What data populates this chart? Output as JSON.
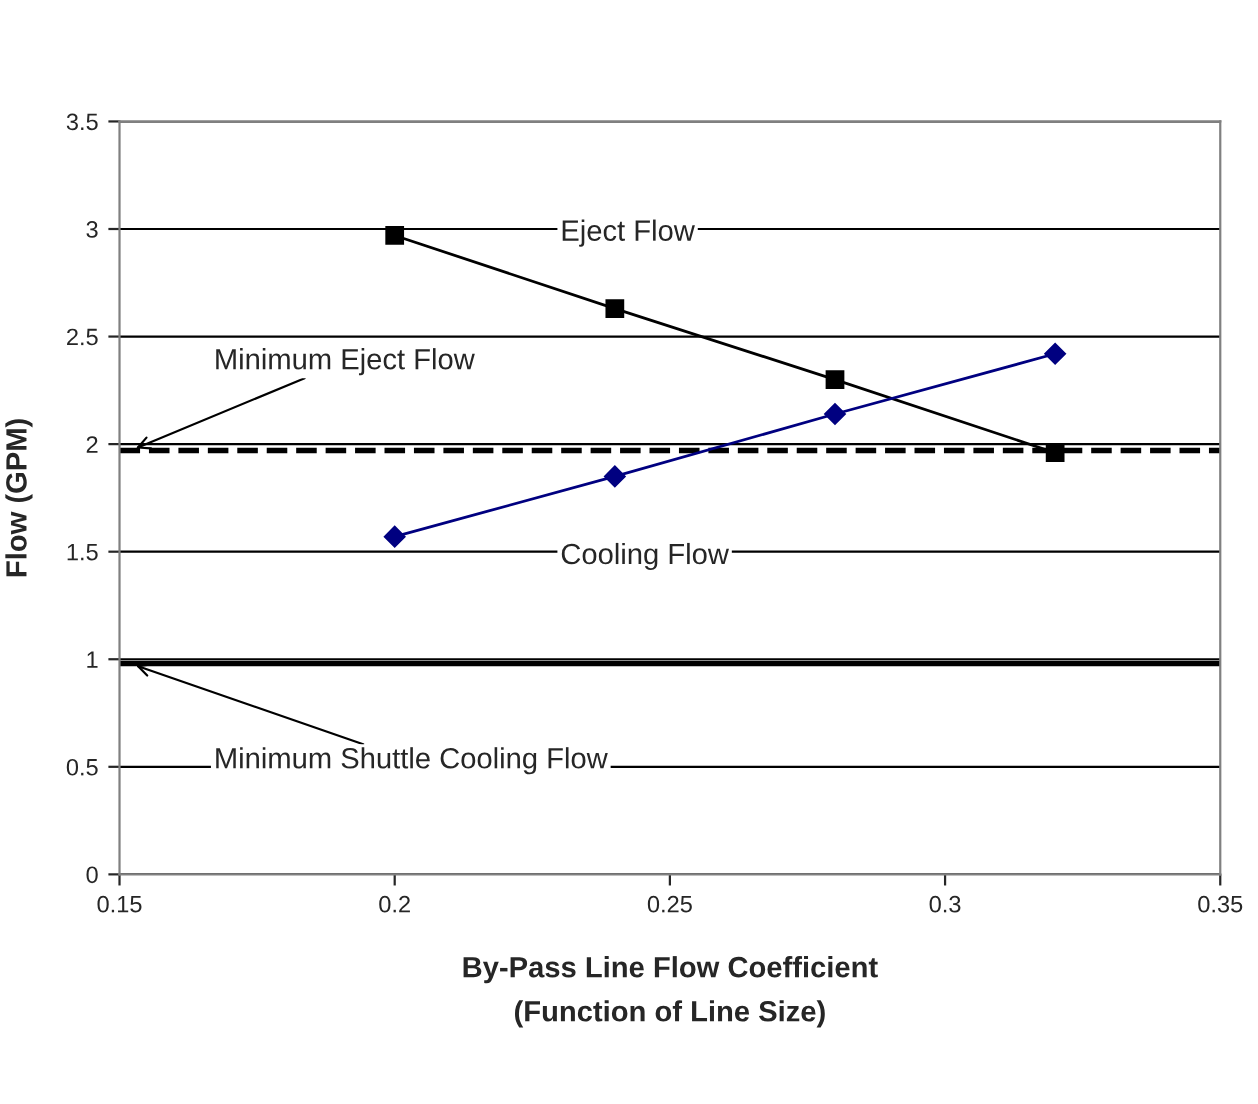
{
  "chart_data": {
    "type": "line",
    "xlabel": "By-Pass Line Flow Coefficient\n(Function of Line Size)",
    "ylabel": "Flow (GPM)",
    "x": [
      0.2,
      0.24,
      0.28,
      0.32
    ],
    "series": [
      {
        "name": "Eject Flow",
        "color": "#000000",
        "marker": "square",
        "values": [
          2.97,
          2.63,
          2.3,
          1.96
        ]
      },
      {
        "name": "Cooling Flow",
        "color": "#000080",
        "marker": "diamond",
        "values": [
          1.57,
          1.85,
          2.14,
          2.42
        ]
      }
    ],
    "xlim": [
      0.15,
      0.35
    ],
    "xticks": [
      0.15,
      0.2,
      0.25,
      0.3,
      0.35
    ],
    "ylim": [
      0,
      3.5
    ],
    "yticks": [
      0,
      0.5,
      1,
      1.5,
      2,
      2.5,
      3,
      3.5
    ],
    "grid": "y",
    "legend": false,
    "ref_lines": [
      {
        "axis": "y",
        "value": 1.97,
        "label": "Minimum Eject Flow",
        "line_style": "dashed",
        "color": "#000000"
      },
      {
        "axis": "y",
        "value": 0.98,
        "label": "Minimum Shuttle Cooling Flow",
        "line_style": "solid",
        "color": "#000000"
      }
    ]
  }
}
